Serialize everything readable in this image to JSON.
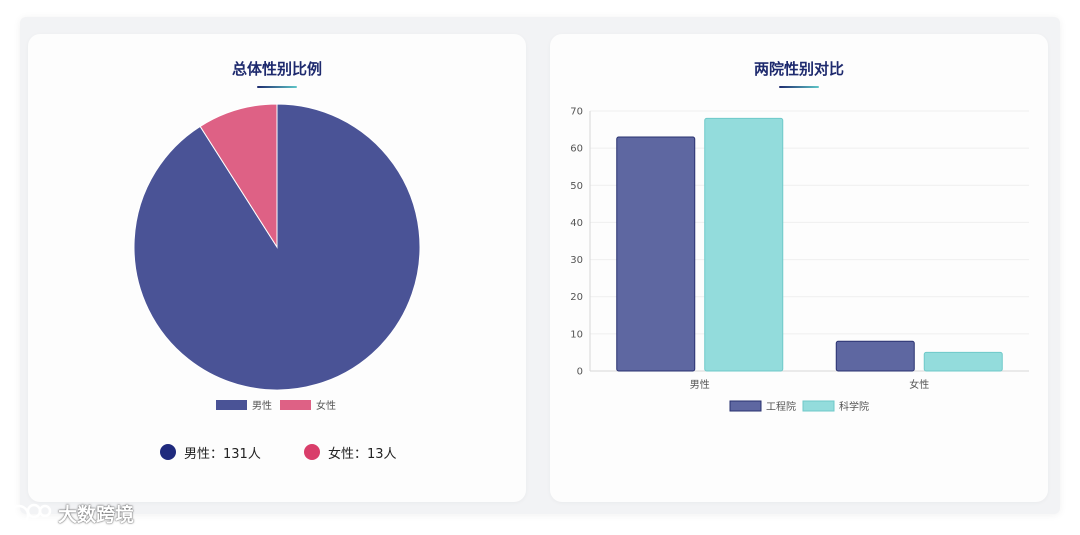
{
  "colors": {
    "male": "#4a5396",
    "female": "#de6185",
    "engineering": "#5e67a1",
    "science": "#93dcdc",
    "male_dot": "#1f2a7d",
    "female_dot": "#d93e6a"
  },
  "left_card": {
    "title": "总体性别比例",
    "summary": {
      "male": "男性：131人",
      "female": "女性：13人"
    }
  },
  "right_card": {
    "title": "两院性别对比"
  },
  "watermark": {
    "text": "大数跨境"
  },
  "chart_data": [
    {
      "type": "pie",
      "title": "总体性别比例",
      "slices": [
        {
          "label": "男性",
          "value": 131
        },
        {
          "label": "女性",
          "value": 13
        }
      ],
      "legend": [
        "男性",
        "女性"
      ],
      "legend_position": "bottom"
    },
    {
      "type": "bar",
      "title": "两院性别对比",
      "categories": [
        "男性",
        "女性"
      ],
      "series": [
        {
          "name": "工程院",
          "values": [
            63,
            8
          ]
        },
        {
          "name": "科学院",
          "values": [
            68,
            5
          ]
        }
      ],
      "ylim": [
        0,
        70
      ],
      "yticks": [
        0,
        10,
        20,
        30,
        40,
        50,
        60,
        70
      ],
      "grid": true,
      "legend_position": "bottom"
    }
  ]
}
